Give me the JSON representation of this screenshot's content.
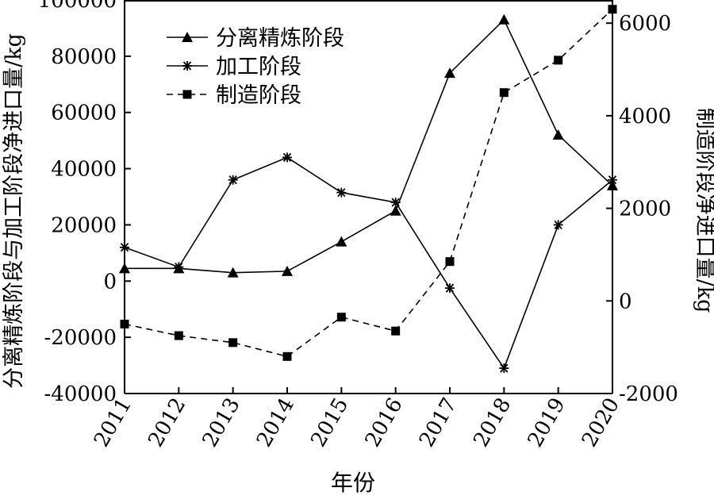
{
  "chart_data": {
    "type": "line",
    "title": "",
    "xlabel": "年份",
    "ylabel_left": "分离精炼阶段与加工阶段净进口量/kg",
    "ylabel_right": "制造阶段净进口量/kg",
    "categories": [
      "2011",
      "2012",
      "2013",
      "2014",
      "2015",
      "2016",
      "2017",
      "2018",
      "2019",
      "2020"
    ],
    "ylim_left": [
      -40000,
      100000
    ],
    "yticks_left": [
      -40000,
      -20000,
      0,
      20000,
      40000,
      60000,
      80000,
      100000
    ],
    "ytick_labels_left": [
      "-40000",
      "-20000",
      "0",
      "20000",
      "40000",
      "60000",
      "80000",
      "100000"
    ],
    "ylim_right": [
      -2000,
      6500
    ],
    "yticks_right": [
      -2000,
      0,
      2000,
      4000,
      6000
    ],
    "ytick_labels_right": [
      "-2000",
      "0",
      "2000",
      "4000",
      "6000"
    ],
    "grid": false,
    "legend_position": "top-left",
    "series": [
      {
        "name": "分离精炼阶段",
        "axis": "left",
        "marker": "triangle",
        "line": "solid",
        "values": [
          4500,
          4500,
          3000,
          3500,
          14000,
          25000,
          74000,
          93000,
          52000,
          34000
        ]
      },
      {
        "name": "加工阶段",
        "axis": "left",
        "marker": "star",
        "line": "solid",
        "values": [
          12000,
          5000,
          36000,
          44000,
          31500,
          28000,
          -2500,
          -31000,
          20000,
          36000
        ]
      },
      {
        "name": "制造阶段",
        "axis": "right",
        "marker": "square",
        "line": "dashed",
        "values": [
          -500,
          -750,
          -900,
          -1200,
          -350,
          -650,
          850,
          4500,
          5200,
          6300
        ]
      }
    ]
  }
}
